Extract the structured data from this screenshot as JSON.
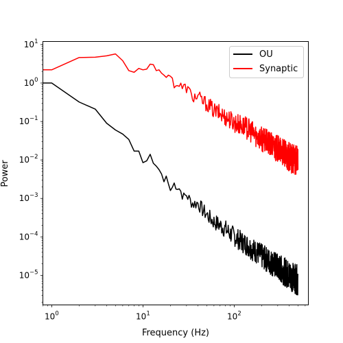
{
  "chart_data": {
    "type": "line",
    "title": "",
    "xlabel": "Frequency (Hz)",
    "ylabel": "Power",
    "xscale": "log",
    "yscale": "log",
    "xlim": [
      0.8,
      650
    ],
    "ylim": [
      1.7e-06,
      12
    ],
    "x_ticks": [
      {
        "value": 1,
        "base": "10",
        "exp": "0"
      },
      {
        "value": 10,
        "base": "10",
        "exp": "1"
      },
      {
        "value": 100,
        "base": "10",
        "exp": "2"
      }
    ],
    "y_ticks": [
      {
        "value": 10,
        "base": "10",
        "exp": "1"
      },
      {
        "value": 1,
        "base": "10",
        "exp": "0"
      },
      {
        "value": 0.1,
        "base": "10",
        "exp": "−1"
      },
      {
        "value": 0.01,
        "base": "10",
        "exp": "−2"
      },
      {
        "value": 0.001,
        "base": "10",
        "exp": "−3"
      },
      {
        "value": 0.0001,
        "base": "10",
        "exp": "−4"
      },
      {
        "value": 1e-05,
        "base": "10",
        "exp": "−5"
      }
    ],
    "grid": false,
    "legend_position": "top-right",
    "series": [
      {
        "name": "OU",
        "color": "#000000",
        "points": [
          [
            0.8,
            1.0
          ],
          [
            1,
            1.0
          ],
          [
            2,
            0.32
          ],
          [
            3,
            0.21
          ],
          [
            4,
            0.09
          ],
          [
            5,
            0.06
          ],
          [
            6,
            0.047
          ],
          [
            7,
            0.034
          ],
          [
            8,
            0.017
          ],
          [
            9,
            0.017
          ],
          [
            10,
            0.0085
          ],
          [
            11,
            0.0095
          ],
          [
            12,
            0.014
          ],
          [
            13,
            0.0082
          ],
          [
            14,
            0.0069
          ],
          [
            15,
            0.0056
          ],
          [
            16,
            0.0043
          ],
          [
            17,
            0.0027
          ],
          [
            18,
            0.0038
          ],
          [
            19,
            0.0024
          ],
          [
            20,
            0.0016
          ],
          [
            22,
            0.0025
          ],
          [
            25,
            0.0019
          ],
          [
            28,
            0.0011
          ],
          [
            30,
            0.0013
          ],
          [
            33,
            0.0009
          ],
          [
            36,
            0.00075
          ],
          [
            40,
            0.0008
          ],
          [
            45,
            0.00052
          ],
          [
            50,
            0.0004
          ],
          [
            55,
            0.00031
          ],
          [
            60,
            0.00026
          ],
          [
            70,
            0.00021
          ],
          [
            80,
            0.00017
          ],
          [
            90,
            0.00013
          ],
          [
            100,
            0.00011
          ],
          [
            120,
            8e-05
          ],
          [
            140,
            6.5e-05
          ],
          [
            160,
            5e-05
          ],
          [
            180,
            4.2e-05
          ],
          [
            200,
            3.4e-05
          ],
          [
            250,
            2.4e-05
          ],
          [
            300,
            1.8e-05
          ],
          [
            350,
            1.4e-05
          ],
          [
            400,
            1.1e-05
          ],
          [
            450,
            9.5e-06
          ],
          [
            500,
            8e-06
          ]
        ]
      },
      {
        "name": "Synaptic",
        "color": "#ff0000",
        "points": [
          [
            0.8,
            2.2
          ],
          [
            1,
            2.2
          ],
          [
            2,
            4.6
          ],
          [
            3,
            4.7
          ],
          [
            4,
            5.1
          ],
          [
            5,
            5.7
          ],
          [
            6,
            3.8
          ],
          [
            7,
            2.1
          ],
          [
            8,
            1.9
          ],
          [
            9,
            2.4
          ],
          [
            10,
            2.2
          ],
          [
            11,
            2.3
          ],
          [
            12,
            3.1
          ],
          [
            13,
            3.0
          ],
          [
            14,
            2.1
          ],
          [
            15,
            2.2
          ],
          [
            16,
            1.8
          ],
          [
            17,
            1.6
          ],
          [
            18,
            1.4
          ],
          [
            19,
            1.6
          ],
          [
            20,
            1.5
          ],
          [
            22,
            1.0
          ],
          [
            25,
            0.9
          ],
          [
            28,
            0.75
          ],
          [
            30,
            0.8
          ],
          [
            33,
            0.55
          ],
          [
            36,
            0.45
          ],
          [
            40,
            0.45
          ],
          [
            45,
            0.35
          ],
          [
            50,
            0.3
          ],
          [
            55,
            0.25
          ],
          [
            60,
            0.2
          ],
          [
            70,
            0.17
          ],
          [
            80,
            0.14
          ],
          [
            90,
            0.12
          ],
          [
            100,
            0.1
          ],
          [
            120,
            0.085
          ],
          [
            140,
            0.07
          ],
          [
            160,
            0.055
          ],
          [
            180,
            0.045
          ],
          [
            200,
            0.038
          ],
          [
            250,
            0.027
          ],
          [
            300,
            0.021
          ],
          [
            350,
            0.016
          ],
          [
            400,
            0.013
          ],
          [
            450,
            0.011
          ],
          [
            500,
            0.01
          ]
        ]
      }
    ]
  }
}
